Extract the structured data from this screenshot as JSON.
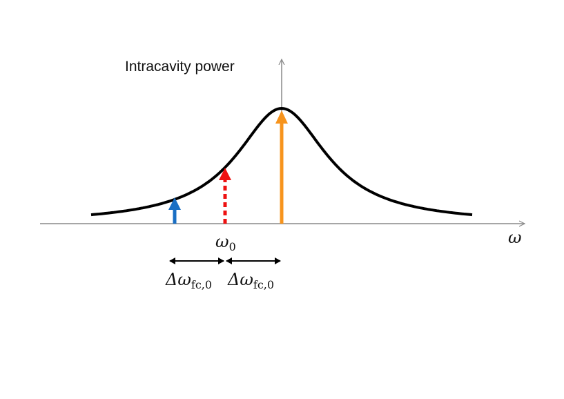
{
  "y_axis_label": "Intracavity power",
  "x_axis_label": "ω",
  "center": {
    "symbol": "ω",
    "subscript": "0"
  },
  "spacings": [
    {
      "symbol": "Δω",
      "subscript": "fc,0"
    },
    {
      "symbol": "Δω",
      "subscript": "fc,0"
    }
  ]
}
